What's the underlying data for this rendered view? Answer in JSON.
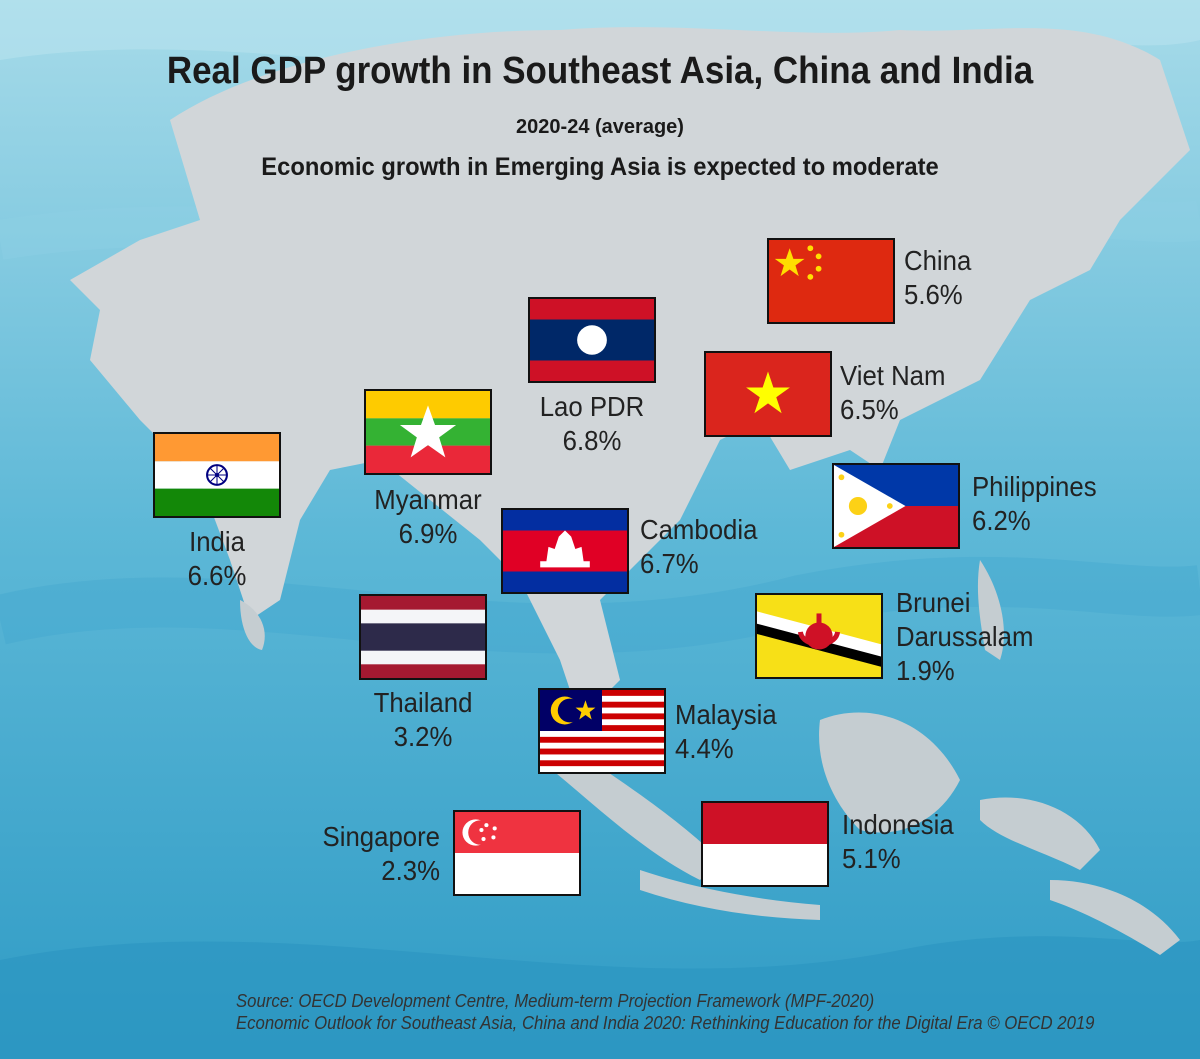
{
  "title": "Real GDP growth in Southeast Asia, China and India",
  "period": "2020-24 (average)",
  "subtitle": "Economic growth in Emerging Asia is expected to moderate",
  "countries": [
    {
      "name": "China",
      "value": "5.6%",
      "growth_pct": 5.6,
      "flag": "china-flag"
    },
    {
      "name": "Lao PDR",
      "value": "6.8%",
      "growth_pct": 6.8,
      "flag": "laos-flag"
    },
    {
      "name": "Viet Nam",
      "value": "6.5%",
      "growth_pct": 6.5,
      "flag": "vietnam-flag"
    },
    {
      "name": "Myanmar",
      "value": "6.9%",
      "growth_pct": 6.9,
      "flag": "myanmar-flag"
    },
    {
      "name": "India",
      "value": "6.6%",
      "growth_pct": 6.6,
      "flag": "india-flag"
    },
    {
      "name": "Philippines",
      "value": "6.2%",
      "growth_pct": 6.2,
      "flag": "philippines-flag"
    },
    {
      "name": "Cambodia",
      "value": "6.7%",
      "growth_pct": 6.7,
      "flag": "cambodia-flag"
    },
    {
      "name": "Brunei Darussalam",
      "name_line1": "Brunei",
      "name_line2": "Darussalam",
      "value": "1.9%",
      "growth_pct": 1.9,
      "flag": "brunei-flag"
    },
    {
      "name": "Thailand",
      "value": "3.2%",
      "growth_pct": 3.2,
      "flag": "thailand-flag"
    },
    {
      "name": "Malaysia",
      "value": "4.4%",
      "growth_pct": 4.4,
      "flag": "malaysia-flag"
    },
    {
      "name": "Singapore",
      "value": "2.3%",
      "growth_pct": 2.3,
      "flag": "singapore-flag"
    },
    {
      "name": "Indonesia",
      "value": "5.1%",
      "growth_pct": 5.1,
      "flag": "indonesia-flag"
    }
  ],
  "source": {
    "line1": "Source: OECD Development Centre, Medium-term Projection Framework (MPF-2020)",
    "line2": "Economic Outlook for Southeast Asia, China and India 2020: Rethinking Education for the Digital Era © OECD 2019"
  },
  "colors": {
    "sea": "#5bb7d6",
    "land": "#d1d6d9",
    "title": "#1a1a1a"
  }
}
